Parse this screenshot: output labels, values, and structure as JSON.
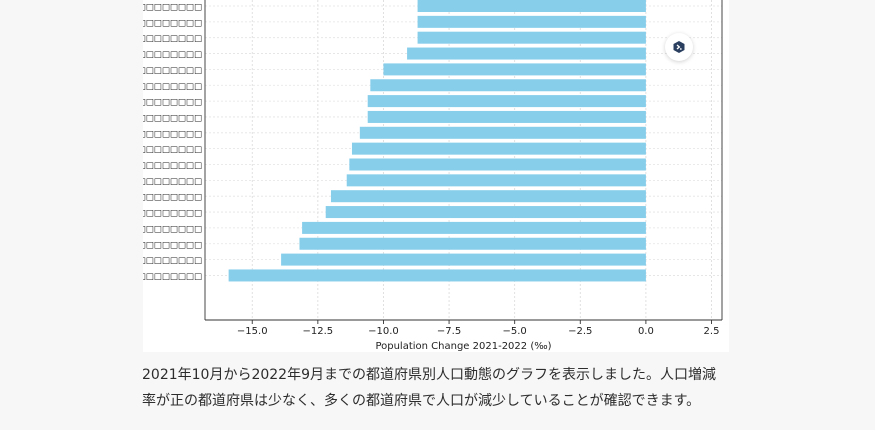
{
  "chart_data": {
    "type": "bar",
    "orientation": "horizontal",
    "categories": [
      "□□□□□□□□",
      "□□□□□□□□",
      "□□□□□□□□",
      "□□□□□□□□",
      "□□□□□□□□",
      "□□□□□□□□",
      "□□□□□□□□",
      "□□□□□□□□",
      "□□□□□□□□",
      "□□□□□□□□",
      "□□□□□□□□",
      "□□□□□□□□",
      "□□□□□□□□",
      "□□□□□□□□",
      "□□□□□□□□",
      "□□□□□□□□",
      "□□□□□□□□",
      "□□□□□□□□"
    ],
    "values": [
      -8.7,
      -8.7,
      -8.7,
      -9.1,
      -10.0,
      -10.5,
      -10.6,
      -10.6,
      -10.9,
      -11.2,
      -11.3,
      -11.4,
      -12.0,
      -12.2,
      -13.1,
      -13.2,
      -13.9,
      -15.9
    ],
    "xlabel": "Population Change 2021-2022 (‰)",
    "xlim": [
      -16.8,
      2.9
    ],
    "xticks": [
      -15.0,
      -12.5,
      -10.0,
      -7.5,
      -5.0,
      -2.5,
      0.0,
      2.5
    ],
    "xtick_labels": [
      "−15.0",
      "−12.5",
      "−10.0",
      "−7.5",
      "−5.0",
      "−2.5",
      "0.0",
      "2.5"
    ],
    "grid": true,
    "bar_color": "#87ceeb"
  },
  "toolbar": {
    "icon": "expand-icon"
  },
  "caption": {
    "line1": "2021年10月から2022年9月までの都道府県別人口動態のグラフを表示しました。人口増減",
    "line2": "率が正の都道府県は少なく、多くの都道府県で人口が減少していることが確認できます。"
  }
}
